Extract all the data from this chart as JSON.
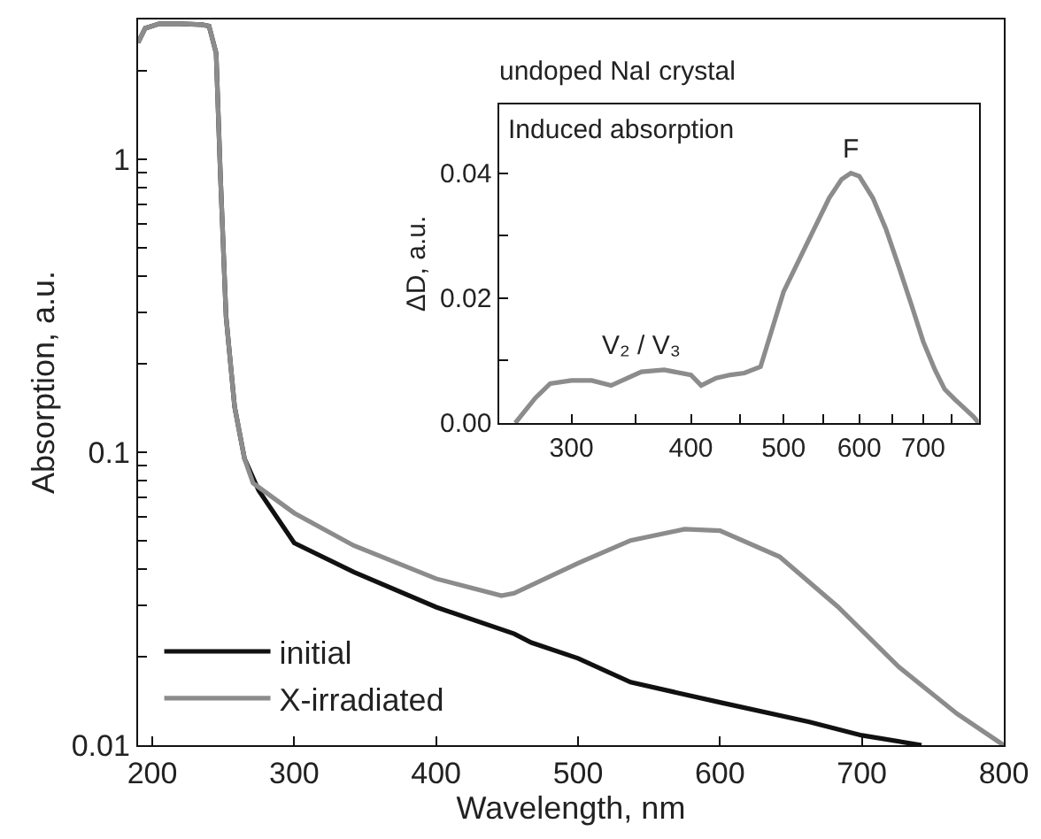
{
  "chart_data": [
    {
      "type": "line",
      "xlabel": "Wavelength, nm",
      "ylabel": "Absorption, a.u.",
      "log": true,
      "legend": "bottom left",
      "xlim": [
        190,
        800
      ],
      "xticks": [
        200,
        300,
        400,
        500,
        600,
        700,
        800
      ],
      "ylim": [
        0.01,
        3
      ],
      "yticks": [
        {
          "value": 0.01,
          "label": "0.01"
        },
        {
          "value": 0.02,
          "label": null
        },
        {
          "value": 0.03,
          "label": null
        },
        {
          "value": 0.04,
          "label": null
        },
        {
          "value": 0.05,
          "label": null
        },
        {
          "value": 0.06,
          "label": null
        },
        {
          "value": 0.07,
          "label": null
        },
        {
          "value": 0.08,
          "label": null
        },
        {
          "value": 0.09,
          "label": null
        },
        {
          "value": 0.1,
          "label": "0.1"
        },
        {
          "value": 0.2,
          "label": null
        },
        {
          "value": 0.3,
          "label": null
        },
        {
          "value": 0.4,
          "label": null
        },
        {
          "value": 0.5,
          "label": null
        },
        {
          "value": 0.6,
          "label": null
        },
        {
          "value": 0.7,
          "label": null
        },
        {
          "value": 0.8,
          "label": null
        },
        {
          "value": 0.9,
          "label": null
        },
        {
          "value": 1,
          "label": "1"
        },
        {
          "value": 2,
          "label": null
        }
      ],
      "series": [
        {
          "name": "initial",
          "color": "#111111",
          "x": [
            190,
            195,
            205,
            220,
            235,
            240,
            245,
            248,
            252,
            258,
            265,
            275,
            300,
            342,
            400,
            455,
            467,
            500,
            537,
            600,
            663,
            700,
            742
          ],
          "values": [
            2.5,
            2.8,
            2.9,
            2.9,
            2.88,
            2.85,
            2.3,
            0.88,
            0.29,
            0.143,
            0.095,
            0.074,
            0.049,
            0.039,
            0.0296,
            0.024,
            0.0224,
            0.0198,
            0.0164,
            0.014,
            0.012,
            0.0108,
            0.01
          ]
        },
        {
          "name": "X-irradiated",
          "color": "#8c8c8c",
          "x": [
            190,
            195,
            205,
            220,
            235,
            240,
            245,
            248,
            252,
            258,
            265,
            271,
            300,
            342,
            400,
            446,
            455,
            500,
            537,
            575,
            600,
            642,
            683,
            726,
            767,
            796,
            800
          ],
          "values": [
            2.5,
            2.8,
            2.9,
            2.9,
            2.88,
            2.85,
            2.3,
            0.88,
            0.29,
            0.143,
            0.095,
            0.0785,
            0.062,
            0.048,
            0.037,
            0.0324,
            0.033,
            0.0418,
            0.05,
            0.0546,
            0.054,
            0.044,
            0.0297,
            0.0185,
            0.0128,
            0.0103,
            0.01
          ]
        }
      ]
    },
    {
      "type": "line",
      "title": "undoped NaI crystal",
      "ylabel": "ΔD, a.u.",
      "log": "x",
      "annotations": [
        "Induced absorption",
        {
          "text": "F",
          "x": 588,
          "y": 0.04
        },
        {
          "text": "V₂ / V₃",
          "x": 355,
          "y": 0.0085
        }
      ],
      "xlim": [
        252,
        800
      ],
      "xticks": [
        300,
        {
          "value": 350,
          "label": null
        },
        400,
        {
          "value": 450,
          "label": null
        },
        500,
        {
          "value": 550,
          "label": null
        },
        600,
        {
          "value": 650,
          "label": null
        },
        700,
        {
          "value": 750,
          "label": null
        }
      ],
      "ylim": [
        0,
        0.051
      ],
      "yticks": [
        {
          "value": 0,
          "label": "0.00"
        },
        {
          "value": 0.01,
          "label": null
        },
        {
          "value": 0.02,
          "label": "0.02"
        },
        {
          "value": 0.03,
          "label": null
        },
        {
          "value": 0.04,
          "label": "0.04"
        }
      ],
      "series": [
        {
          "color": "#8c8c8c",
          "x": [
            262,
            275,
            285,
            300,
            315,
            330,
            355,
            375,
            400,
            410,
            425,
            440,
            455,
            473,
            500,
            534,
            558,
            575,
            588,
            600,
            620,
            640,
            660,
            680,
            700,
            720,
            737,
            755,
            770,
            790,
            800
          ],
          "values": [
            0,
            0.004,
            0.0063,
            0.0068,
            0.0068,
            0.006,
            0.0082,
            0.0085,
            0.0077,
            0.006,
            0.0072,
            0.0077,
            0.008,
            0.009,
            0.021,
            0.03,
            0.036,
            0.039,
            0.04,
            0.0395,
            0.036,
            0.031,
            0.025,
            0.019,
            0.013,
            0.0085,
            0.0054,
            0.0038,
            0.0026,
            0.001,
            0
          ]
        }
      ]
    }
  ]
}
